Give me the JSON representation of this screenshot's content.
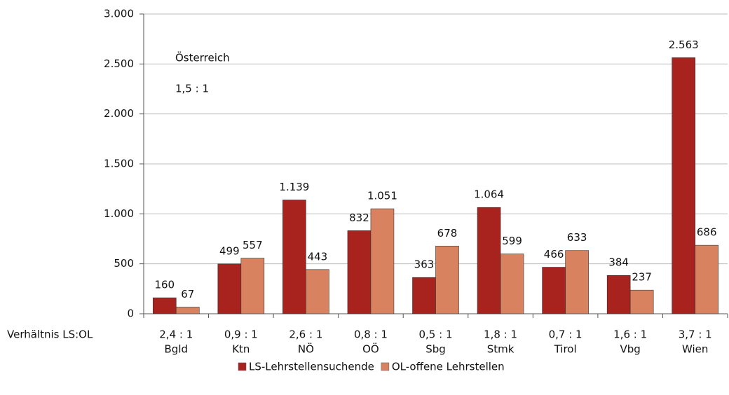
{
  "chart_data": {
    "type": "bar",
    "categories": [
      "Bgld",
      "Ktn",
      "NÖ",
      "OÖ",
      "Sbg",
      "Stmk",
      "Tirol",
      "Vbg",
      "Wien"
    ],
    "ratio_label": "Verhältnis LS:OL",
    "ratio_labels": [
      "2,4 : 1",
      "0,9 : 1",
      "2,6 : 1",
      "0,8 : 1",
      "0,5 : 1",
      "1,8 : 1",
      "0,7 : 1",
      "1,6 : 1",
      "3,7 : 1"
    ],
    "annotations": [
      "Österreich",
      "1,5 : 1"
    ],
    "series": [
      {
        "name": "LS-Lehrstellensuchende",
        "color": "#a8231e",
        "values": [
          160,
          499,
          1139,
          832,
          363,
          1064,
          466,
          384,
          2563
        ],
        "value_labels": [
          "160",
          "499",
          "1.139",
          "832",
          "363",
          "1.064",
          "466",
          "384",
          "2.563"
        ]
      },
      {
        "name": "OL-offene Lehrstellen",
        "color": "#d9825f",
        "values": [
          67,
          557,
          443,
          1051,
          678,
          599,
          633,
          237,
          686
        ],
        "value_labels": [
          "67",
          "557",
          "443",
          "1.051",
          "678",
          "599",
          "633",
          "237",
          "686"
        ]
      }
    ],
    "ylim": [
      0,
      3000
    ],
    "yticks": [
      0,
      500,
      {
        "value": 1000,
        "label": "1.000"
      },
      {
        "value": 1500,
        "label": "1.500"
      },
      {
        "value": 2000,
        "label": "2.000"
      },
      {
        "value": 2500,
        "label": "2.500"
      },
      {
        "value": 3000,
        "label": "3.000"
      }
    ],
    "grid": true,
    "legend": "bottom"
  }
}
